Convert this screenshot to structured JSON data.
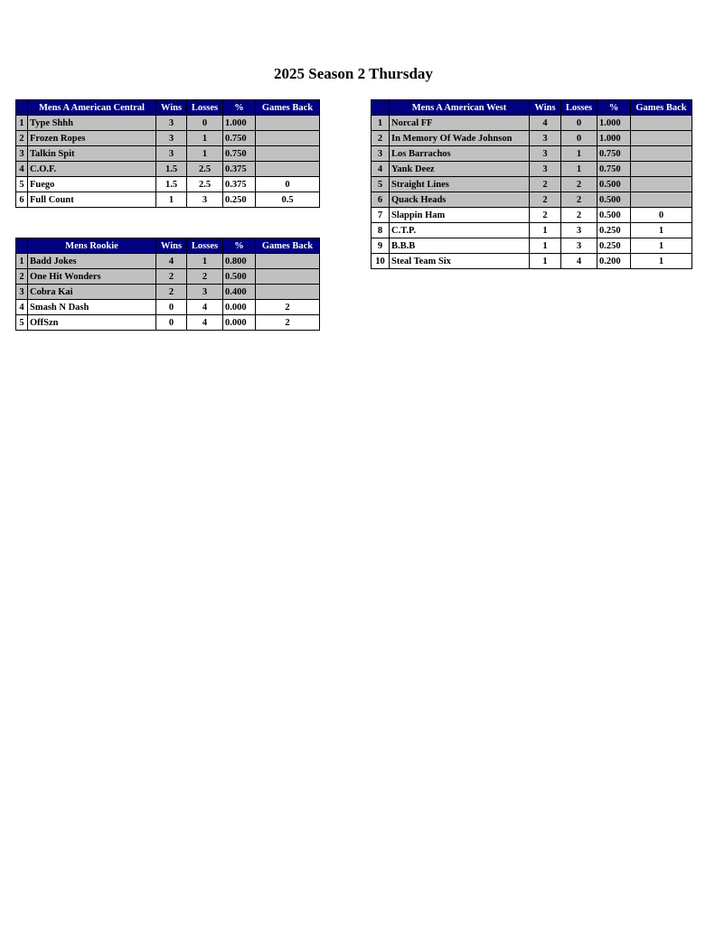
{
  "page_title": "2025 Season 2 Thursday",
  "colors": {
    "header_bg": "#000080",
    "header_text": "#ffffff",
    "shaded_row": "#c0c0c0"
  },
  "columns": [
    "Wins",
    "Losses",
    "%",
    "Games Back"
  ],
  "tables": [
    {
      "division": "Mens A American Central",
      "rows": [
        {
          "rank": "1",
          "team": "Type Shhh",
          "wins": "3",
          "losses": "0",
          "pct": "1.000",
          "gb": "",
          "shaded": true
        },
        {
          "rank": "2",
          "team": "Frozen Ropes",
          "wins": "3",
          "losses": "1",
          "pct": "0.750",
          "gb": "",
          "shaded": true
        },
        {
          "rank": "3",
          "team": "Talkin Spit",
          "wins": "3",
          "losses": "1",
          "pct": "0.750",
          "gb": "",
          "shaded": true
        },
        {
          "rank": "4",
          "team": "C.O.F.",
          "wins": "1.5",
          "losses": "2.5",
          "pct": "0.375",
          "gb": "",
          "shaded": true
        },
        {
          "rank": "5",
          "team": "Fuego",
          "wins": "1.5",
          "losses": "2.5",
          "pct": "0.375",
          "gb": "0",
          "shaded": false
        },
        {
          "rank": "6",
          "team": "Full Count",
          "wins": "1",
          "losses": "3",
          "pct": "0.250",
          "gb": "0.5",
          "shaded": false
        }
      ]
    },
    {
      "division": "Mens A American West",
      "rows": [
        {
          "rank": "1",
          "team": "Norcal FF",
          "wins": "4",
          "losses": "0",
          "pct": "1.000",
          "gb": "",
          "shaded": true
        },
        {
          "rank": "2",
          "team": "In Memory Of Wade Johnson",
          "wins": "3",
          "losses": "0",
          "pct": "1.000",
          "gb": "",
          "shaded": true
        },
        {
          "rank": "3",
          "team": "Los Barrachos",
          "wins": "3",
          "losses": "1",
          "pct": "0.750",
          "gb": "",
          "shaded": true
        },
        {
          "rank": "4",
          "team": "Yank Deez",
          "wins": "3",
          "losses": "1",
          "pct": "0.750",
          "gb": "",
          "shaded": true
        },
        {
          "rank": "5",
          "team": "Straight Lines",
          "wins": "2",
          "losses": "2",
          "pct": "0.500",
          "gb": "",
          "shaded": true
        },
        {
          "rank": "6",
          "team": "Quack Heads",
          "wins": "2",
          "losses": "2",
          "pct": "0.500",
          "gb": "",
          "shaded": true
        },
        {
          "rank": "7",
          "team": "Slappin Ham",
          "wins": "2",
          "losses": "2",
          "pct": "0.500",
          "gb": "0",
          "shaded": false
        },
        {
          "rank": "8",
          "team": "C.T.P.",
          "wins": "1",
          "losses": "3",
          "pct": "0.250",
          "gb": "1",
          "shaded": false
        },
        {
          "rank": "9",
          "team": "B.B.B",
          "wins": "1",
          "losses": "3",
          "pct": "0.250",
          "gb": "1",
          "shaded": false
        },
        {
          "rank": "10",
          "team": "Steal Team Six",
          "wins": "1",
          "losses": "4",
          "pct": "0.200",
          "gb": "1",
          "shaded": false
        }
      ]
    },
    {
      "division": "Mens Rookie",
      "rows": [
        {
          "rank": "1",
          "team": "Badd Jokes",
          "wins": "4",
          "losses": "1",
          "pct": "0.800",
          "gb": "",
          "shaded": true
        },
        {
          "rank": "2",
          "team": "One Hit Wonders",
          "wins": "2",
          "losses": "2",
          "pct": "0.500",
          "gb": "",
          "shaded": true
        },
        {
          "rank": "3",
          "team": "Cobra Kai",
          "wins": "2",
          "losses": "3",
          "pct": "0.400",
          "gb": "",
          "shaded": true
        },
        {
          "rank": "4",
          "team": "Smash N Dash",
          "wins": "0",
          "losses": "4",
          "pct": "0.000",
          "gb": "2",
          "shaded": false
        },
        {
          "rank": "5",
          "team": "OffSzn",
          "wins": "0",
          "losses": "4",
          "pct": "0.000",
          "gb": "2",
          "shaded": false
        }
      ]
    }
  ]
}
